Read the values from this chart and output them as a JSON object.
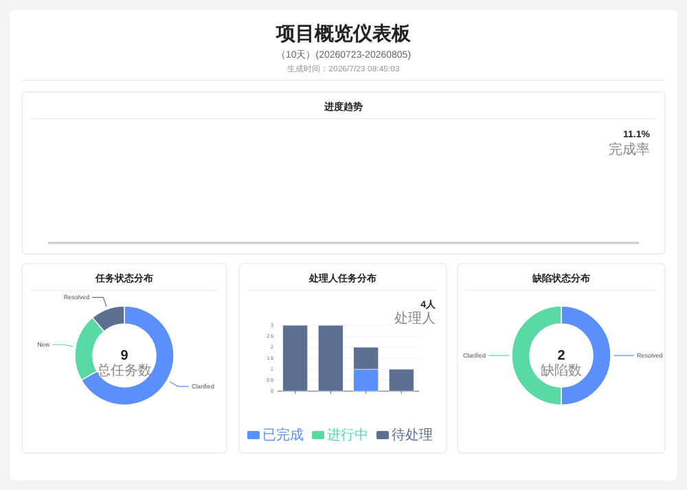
{
  "chart_data": [
    {
      "type": "other",
      "title": "项目概览仪表板",
      "subtitle": "（10天）(20260723-20260805)",
      "annotations": [
        "生成时间：2026/7/23 08:45:03"
      ]
    },
    {
      "type": "other",
      "title": "进度趋势",
      "annotations": [
        "11.1%",
        "完成率"
      ]
    },
    {
      "type": "donut",
      "title": "任务状态分布",
      "categories": [
        "Clarified",
        "New",
        "Resolved"
      ],
      "values": [
        66.7,
        22.2,
        11.1
      ],
      "colors": [
        "#5b8ff9",
        "#5ad8a6",
        "#5d7092"
      ],
      "annotations": [
        "9",
        "总任务数"
      ]
    },
    {
      "type": "bar",
      "title": "处理人任务分布",
      "categories": [
        null,
        null,
        null,
        null
      ],
      "stacked": true,
      "series": [
        {
          "name": "已完成",
          "color": "#5b8ff9",
          "values": [
            0,
            0,
            1,
            0
          ]
        },
        {
          "name": "进行中",
          "color": "#5ad8a6",
          "values": [
            0,
            0,
            0,
            0
          ]
        },
        {
          "name": "待处理",
          "color": "#5d7092",
          "values": [
            3,
            3,
            1,
            1
          ]
        }
      ],
      "ylim": [
        0,
        3
      ],
      "yticks": [
        0,
        0.5,
        1,
        1.5,
        2,
        2.5,
        3
      ],
      "grid": "y",
      "legend": "bottom",
      "annotations": [
        "4人",
        "处理人"
      ]
    },
    {
      "type": "donut",
      "title": "缺陷状态分布",
      "categories": [
        "Resolved",
        "Clarified"
      ],
      "values": [
        50,
        50
      ],
      "colors": [
        "#5b8ff9",
        "#5ad8a6"
      ],
      "annotations": [
        "2",
        "缺陷数"
      ]
    }
  ]
}
